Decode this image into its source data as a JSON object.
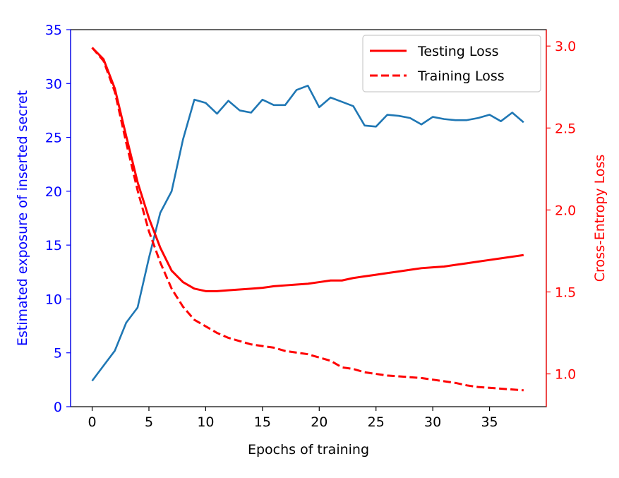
{
  "chart_data": {
    "type": "line",
    "xlabel": "Epochs of training",
    "ylabel_left": "Estimated exposure of inserted secret",
    "ylabel_right": "Cross-Entropy Loss",
    "xlim": [
      -1.9,
      40.0
    ],
    "ylim_left": [
      0,
      35
    ],
    "ylim_right": [
      0.8,
      3.1
    ],
    "x_ticks": [
      0,
      5,
      10,
      15,
      20,
      25,
      30,
      35
    ],
    "y_left_ticks": [
      0,
      5,
      10,
      15,
      20,
      25,
      30,
      35
    ],
    "y_right_ticks": [
      "1.0",
      "1.5",
      "2.0",
      "2.5",
      "3.0"
    ],
    "grid": false,
    "legend_position": "top-right",
    "colors": {
      "exposure": "#1f77b4",
      "loss": "#ff0000",
      "left_axis": "#0000ff",
      "right_axis": "#ff0000"
    },
    "series": [
      {
        "key": "exposure",
        "axis": "left",
        "x": [
          0,
          1,
          2,
          3,
          4,
          5,
          6,
          7,
          8,
          9,
          10,
          11,
          12,
          13,
          14,
          15,
          16,
          17,
          18,
          19,
          20,
          21,
          22,
          23,
          24,
          25,
          26,
          27,
          28,
          29,
          30,
          31,
          32,
          33,
          34,
          35,
          36,
          37,
          38
        ],
        "values": [
          2.4,
          3.8,
          5.2,
          7.8,
          9.2,
          13.8,
          18.0,
          20.0,
          24.8,
          28.5,
          28.2,
          27.2,
          28.4,
          27.5,
          27.3,
          28.5,
          28.0,
          28.0,
          29.4,
          29.8,
          27.8,
          28.7,
          28.3,
          27.9,
          26.1,
          26.0,
          27.1,
          27.0,
          26.8,
          26.2,
          26.9,
          26.7,
          26.6,
          26.6,
          26.8,
          27.1,
          26.5,
          27.3,
          26.4
        ]
      },
      {
        "key": "testing",
        "axis": "right",
        "name": "Testing Loss",
        "style": "solid",
        "x": [
          0,
          1,
          2,
          3,
          4,
          5,
          6,
          7,
          8,
          9,
          10,
          11,
          12,
          13,
          14,
          15,
          16,
          17,
          18,
          19,
          20,
          21,
          22,
          23,
          24,
          25,
          26,
          27,
          28,
          29,
          30,
          31,
          32,
          33,
          34,
          35,
          36,
          37,
          38
        ],
        "values": [
          2.99,
          2.92,
          2.74,
          2.45,
          2.17,
          1.95,
          1.77,
          1.63,
          1.56,
          1.52,
          1.505,
          1.505,
          1.51,
          1.515,
          1.52,
          1.525,
          1.535,
          1.54,
          1.545,
          1.55,
          1.56,
          1.57,
          1.57,
          1.585,
          1.595,
          1.605,
          1.615,
          1.625,
          1.635,
          1.645,
          1.65,
          1.655,
          1.665,
          1.675,
          1.685,
          1.695,
          1.705,
          1.715,
          1.725
        ]
      },
      {
        "key": "training",
        "axis": "right",
        "name": "Training Loss",
        "style": "dashed",
        "x": [
          0,
          1,
          2,
          3,
          4,
          5,
          6,
          7,
          8,
          9,
          10,
          11,
          12,
          13,
          14,
          15,
          16,
          17,
          18,
          19,
          20,
          21,
          22,
          23,
          24,
          25,
          26,
          27,
          28,
          29,
          30,
          31,
          32,
          33,
          34,
          35,
          36,
          37,
          38
        ],
        "values": [
          2.99,
          2.91,
          2.72,
          2.41,
          2.12,
          1.87,
          1.68,
          1.52,
          1.41,
          1.33,
          1.29,
          1.25,
          1.22,
          1.2,
          1.18,
          1.17,
          1.16,
          1.14,
          1.13,
          1.12,
          1.1,
          1.08,
          1.04,
          1.03,
          1.01,
          1.0,
          0.99,
          0.985,
          0.98,
          0.975,
          0.965,
          0.955,
          0.945,
          0.93,
          0.92,
          0.915,
          0.91,
          0.905,
          0.9
        ]
      }
    ]
  }
}
